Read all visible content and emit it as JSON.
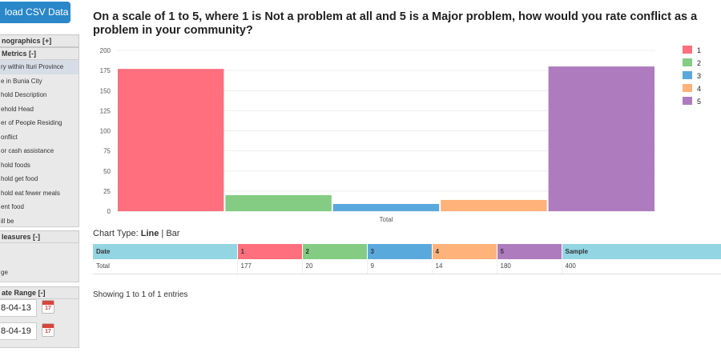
{
  "sidebar": {
    "csv_button": "load CSV Data",
    "demographics": "nographics  [+]",
    "metrics_header": "Metrics  [-]",
    "metrics": [
      "ry within Ituri Province",
      "e in Bunia City",
      "hold Description",
      "ehold Head",
      "er of People Residing",
      "onflict",
      "or cash assistance",
      "hold foods",
      "hold get food",
      "hold eat fewer meals",
      "ent food",
      "ill be"
    ],
    "measures_header": "leasures  [-]",
    "measures_item": "ge",
    "date_range_header": "ate Range  [-]",
    "start_date": "8-04-13",
    "end_date": "8-04-19",
    "calendar_num": "17"
  },
  "main": {
    "title": "On a scale of 1 to 5, where 1 is Not a problem at all and 5 is a Major problem, how would you rate conflict as a problem in your community?",
    "chart_type_label": "Chart Type:",
    "chart_type_line": "Line",
    "chart_type_sep": "|",
    "chart_type_bar": "Bar",
    "showing": "Showing 1 to 1 of 1 entries"
  },
  "colors": {
    "s1": "#ff6f7d",
    "s2": "#84cc84",
    "s3": "#5aa9dc",
    "s4": "#ffb27a",
    "s5": "#ae7cbe",
    "header": "#93d5e2"
  },
  "chart_data": {
    "type": "bar",
    "categories": [
      "Total"
    ],
    "series": [
      {
        "name": "1",
        "values": [
          177
        ]
      },
      {
        "name": "2",
        "values": [
          20
        ]
      },
      {
        "name": "3",
        "values": [
          9
        ]
      },
      {
        "name": "4",
        "values": [
          14
        ]
      },
      {
        "name": "5",
        "values": [
          180
        ]
      }
    ],
    "yticks": [
      "0",
      "25",
      "50",
      "75",
      "100",
      "125",
      "150",
      "175",
      "200"
    ],
    "ylim": [
      0,
      200
    ],
    "grid": true,
    "legend": "right"
  },
  "table": {
    "headers": [
      "Date",
      "1",
      "2",
      "3",
      "4",
      "5",
      "Sample"
    ],
    "rows": [
      [
        "Total",
        "177",
        "20",
        "9",
        "14",
        "180",
        "400"
      ]
    ]
  }
}
